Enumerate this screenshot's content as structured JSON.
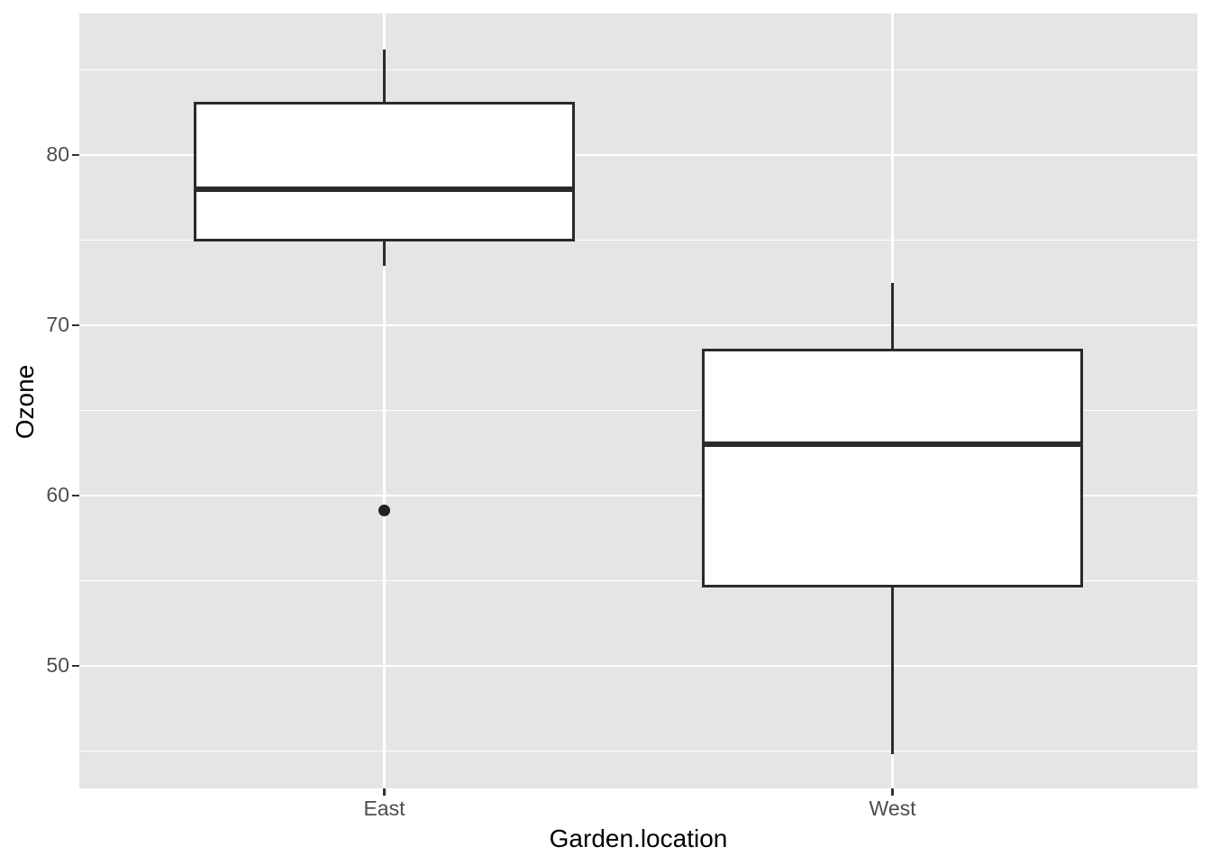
{
  "chart_data": {
    "type": "boxplot",
    "title": "",
    "xlabel": "Garden.location",
    "ylabel": "Ozone",
    "categories": [
      "East",
      "West"
    ],
    "series": [
      {
        "name": "East",
        "lower_whisker": 73.5,
        "q1": 74.9,
        "median": 78.0,
        "q3": 83.1,
        "upper_whisker": 86.2,
        "outliers": [
          59.1
        ]
      },
      {
        "name": "West",
        "lower_whisker": 44.8,
        "q1": 54.6,
        "median": 63.0,
        "q3": 68.6,
        "upper_whisker": 72.5,
        "outliers": []
      }
    ],
    "ylim": [
      42.8,
      88.3
    ],
    "yticks": [
      50,
      60,
      70,
      80
    ],
    "yticks_minor": [
      45,
      55,
      65,
      75,
      85
    ],
    "grid": true,
    "legend": "none",
    "theme": {
      "panel_bg": "#E5E5E5",
      "grid_color": "#FFFFFF",
      "box_fill": "#FFFFFF",
      "box_stroke": "#2A2A2A",
      "outlier_color": "#212121",
      "tick_text_color": "#4D4D4D",
      "tick_mark_color": "#333333",
      "axis_title_color": "#000000"
    }
  }
}
